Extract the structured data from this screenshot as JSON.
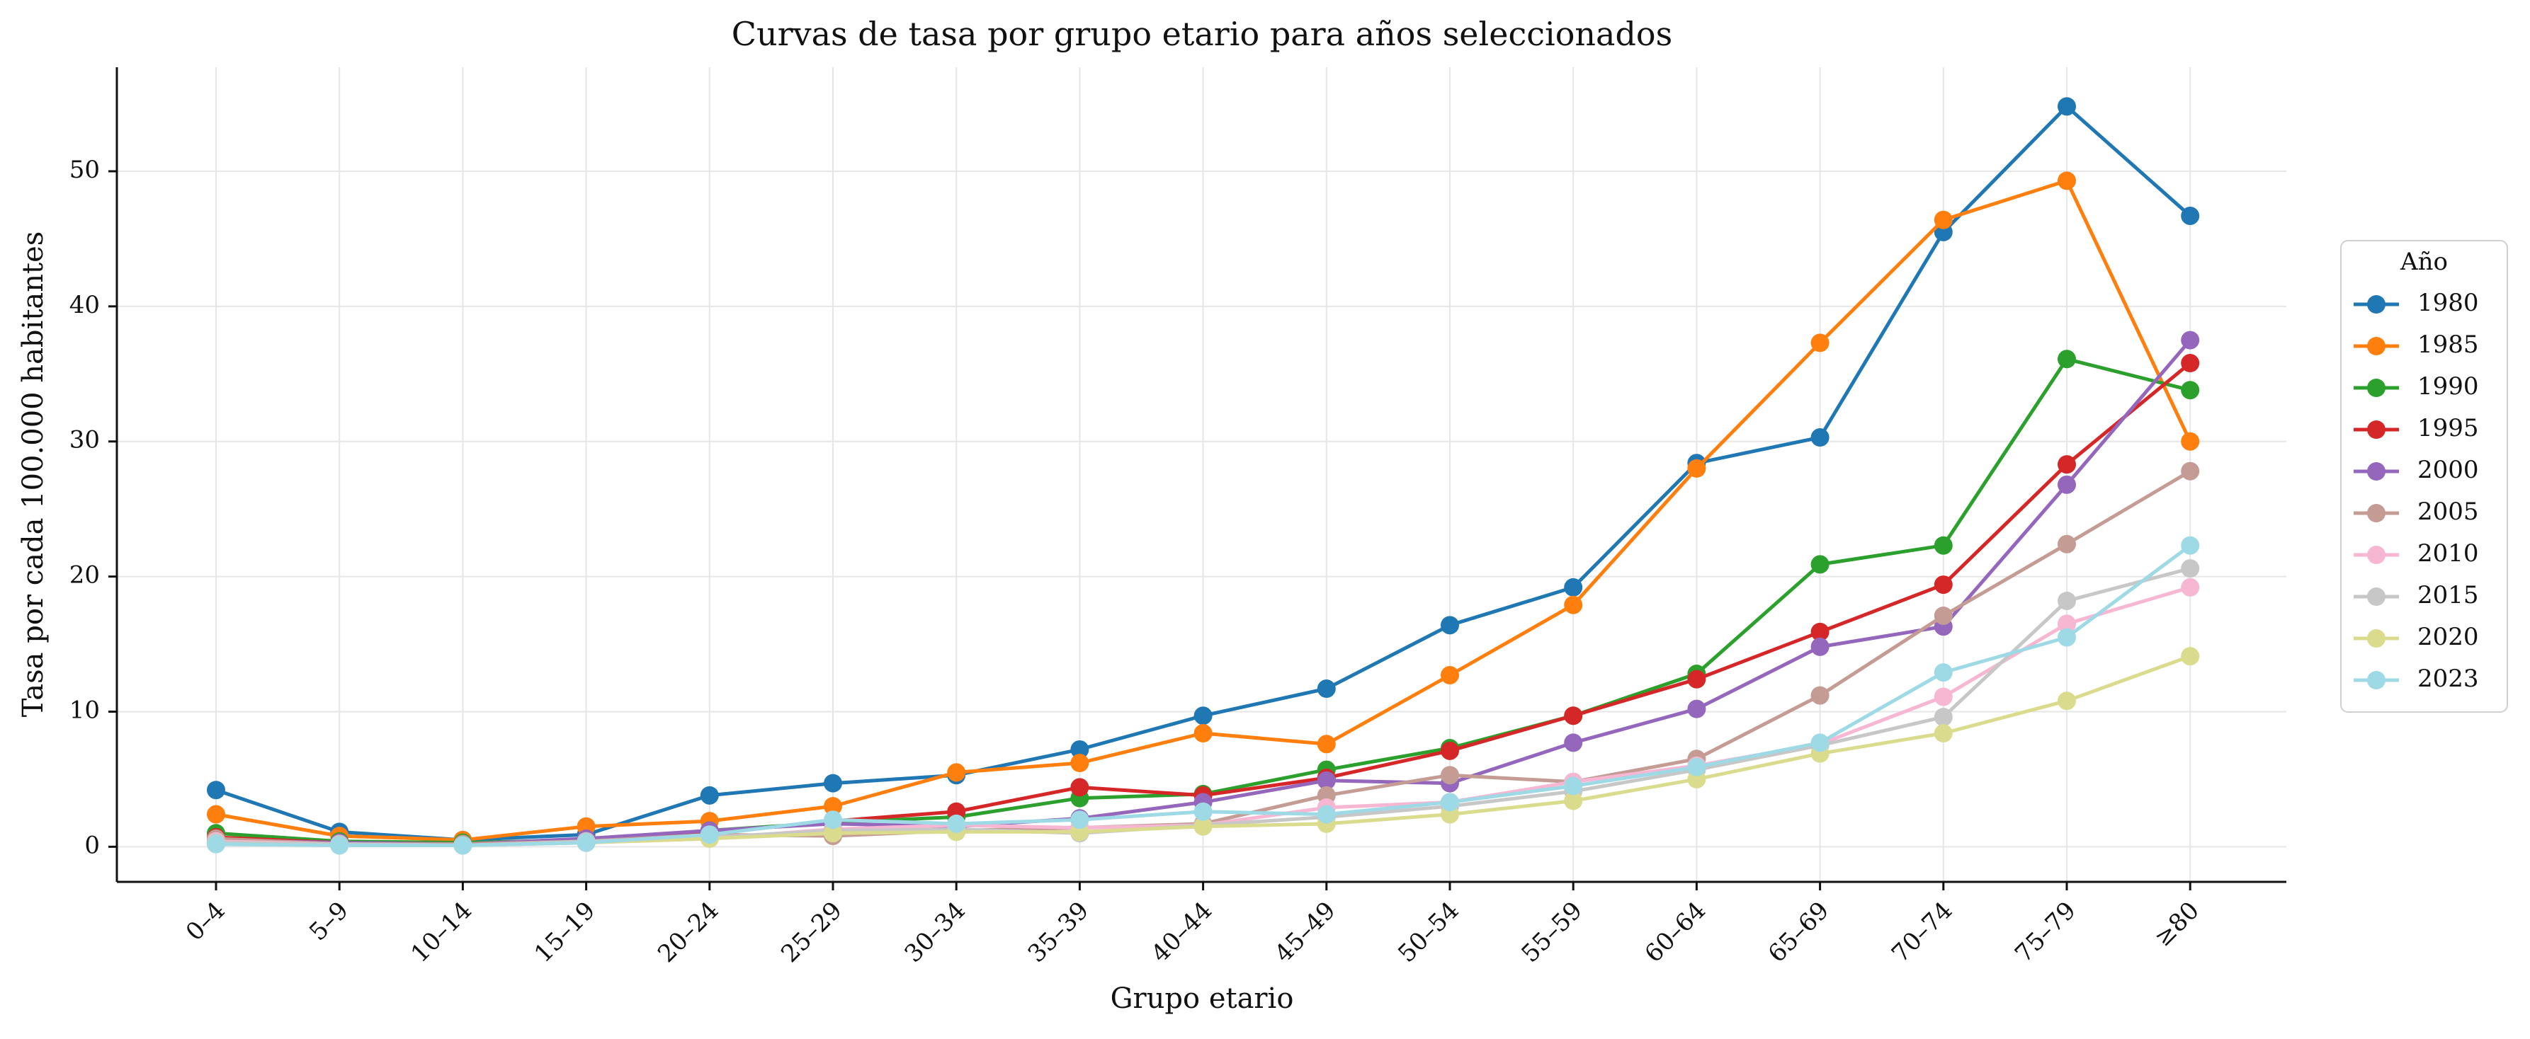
{
  "chart_data": {
    "type": "line",
    "title": "Curvas de tasa por grupo etario para años seleccionados",
    "xlabel": "Grupo etario",
    "ylabel": "Tasa por cada 100.000 habitantes",
    "categories": [
      "0–4",
      "5–9",
      "10–14",
      "15–19",
      "20–24",
      "25–29",
      "30–34",
      "35–39",
      "40–44",
      "45–49",
      "50–54",
      "55–59",
      "60–64",
      "65–69",
      "70–74",
      "75–79",
      "≥80"
    ],
    "ylim": [
      -2.6,
      57.7
    ],
    "yticks": [
      0,
      10,
      20,
      30,
      40,
      50
    ],
    "grid": true,
    "legend": {
      "title": "Año",
      "placement": "center-right"
    },
    "series": [
      {
        "name": "1980",
        "color": "#1f77b4",
        "values": [
          4.2,
          1.1,
          0.5,
          0.9,
          3.8,
          4.7,
          5.3,
          7.2,
          9.7,
          11.7,
          16.4,
          19.2,
          28.4,
          30.3,
          45.5,
          54.8,
          46.7
        ]
      },
      {
        "name": "1985",
        "color": "#ff7f0e",
        "values": [
          2.4,
          0.8,
          0.5,
          1.5,
          1.9,
          3.0,
          5.5,
          6.2,
          8.4,
          7.6,
          12.7,
          17.9,
          28.0,
          37.3,
          46.4,
          49.3,
          30.0
        ]
      },
      {
        "name": "1990",
        "color": "#2ca02c",
        "values": [
          1.0,
          0.4,
          0.3,
          0.5,
          1.2,
          1.8,
          2.2,
          3.6,
          3.9,
          5.7,
          7.3,
          9.7,
          12.8,
          20.9,
          22.3,
          36.1,
          33.8
        ]
      },
      {
        "name": "1995",
        "color": "#d62728",
        "values": [
          0.7,
          0.3,
          0.2,
          0.5,
          1.0,
          1.9,
          2.6,
          4.4,
          3.8,
          5.1,
          7.1,
          9.7,
          12.4,
          15.9,
          19.4,
          28.3,
          35.8
        ]
      },
      {
        "name": "2000",
        "color": "#9467bd",
        "values": [
          0.5,
          0.3,
          0.2,
          0.6,
          1.2,
          1.7,
          1.5,
          2.1,
          3.3,
          4.9,
          4.7,
          7.7,
          10.2,
          14.8,
          16.3,
          26.8,
          37.5
        ]
      },
      {
        "name": "2005",
        "color": "#c49c94",
        "values": [
          0.6,
          0.2,
          0.2,
          0.4,
          0.9,
          0.8,
          1.2,
          1.4,
          1.7,
          3.8,
          5.3,
          4.8,
          6.5,
          11.2,
          17.1,
          22.4,
          27.8
        ]
      },
      {
        "name": "2010",
        "color": "#f7b6d2",
        "values": [
          0.4,
          0.2,
          0.1,
          0.3,
          0.6,
          1.3,
          1.6,
          1.4,
          1.6,
          2.9,
          3.3,
          4.8,
          6.0,
          7.6,
          11.1,
          16.5,
          19.2
        ]
      },
      {
        "name": "2015",
        "color": "#c7c7c7",
        "values": [
          0.3,
          0.2,
          0.1,
          0.4,
          0.7,
          1.2,
          1.3,
          1.0,
          1.6,
          2.2,
          3.0,
          4.1,
          5.7,
          7.5,
          9.6,
          18.2,
          20.6
        ]
      },
      {
        "name": "2020",
        "color": "#dbdb8d",
        "values": [
          0.2,
          0.1,
          0.1,
          0.3,
          0.6,
          1.0,
          1.1,
          1.1,
          1.5,
          1.7,
          2.4,
          3.4,
          5.0,
          6.9,
          8.4,
          10.8,
          14.1
        ]
      },
      {
        "name": "2023",
        "color": "#9edae5",
        "values": [
          0.2,
          0.1,
          0.1,
          0.3,
          0.9,
          2.0,
          1.7,
          2.0,
          2.6,
          2.4,
          3.3,
          4.5,
          5.9,
          7.7,
          12.9,
          15.5,
          22.3
        ]
      }
    ]
  }
}
